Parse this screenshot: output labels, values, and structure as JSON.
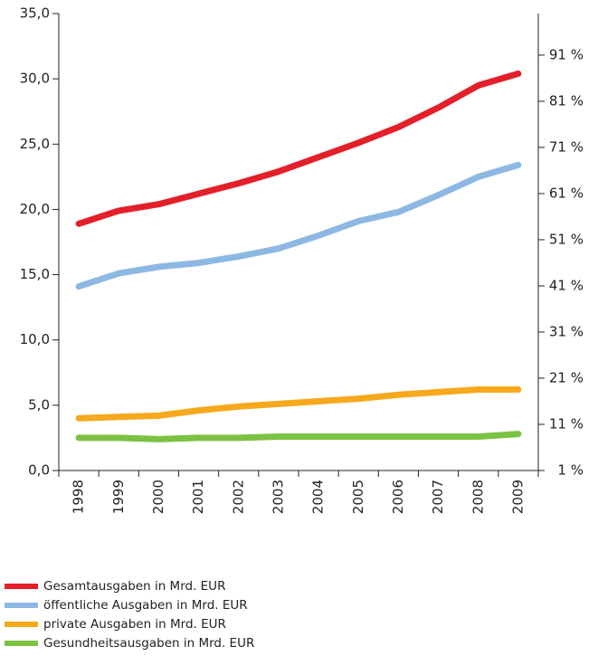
{
  "chart_data": {
    "type": "line",
    "categories": [
      "1998",
      "1999",
      "2000",
      "2001",
      "2002",
      "2003",
      "2004",
      "2005",
      "2006",
      "2007",
      "2008",
      "2009"
    ],
    "series": [
      {
        "name": "Gesamtausgaben in Mrd. EUR",
        "color": "#e3202a",
        "values": [
          18.9,
          19.9,
          20.4,
          21.2,
          22.0,
          22.9,
          24.0,
          25.1,
          26.3,
          27.8,
          29.5,
          30.4
        ]
      },
      {
        "name": "öffentliche Ausgaben in Mrd. EUR",
        "color": "#8db8e3",
        "values": [
          14.1,
          15.1,
          15.6,
          15.9,
          16.4,
          17.0,
          18.0,
          19.1,
          19.8,
          21.1,
          22.5,
          23.4
        ]
      },
      {
        "name": "private Ausgaben in Mrd. EUR",
        "color": "#f6a91c",
        "values": [
          4.0,
          4.1,
          4.2,
          4.6,
          4.9,
          5.1,
          5.3,
          5.5,
          5.8,
          6.0,
          6.2,
          6.2
        ]
      },
      {
        "name": "Gesundheitsausgaben in Mrd. EUR",
        "color": "#7cc242",
        "values": [
          2.5,
          2.5,
          2.4,
          2.5,
          2.5,
          2.6,
          2.6,
          2.6,
          2.6,
          2.6,
          2.6,
          2.8
        ]
      }
    ],
    "ylim": [
      0,
      35
    ],
    "yticks": [
      {
        "value": 0,
        "label": "0,0"
      },
      {
        "value": 5,
        "label": "5,0"
      },
      {
        "value": 10,
        "label": "10,0"
      },
      {
        "value": 15,
        "label": "15,0"
      },
      {
        "value": 20,
        "label": "20,0"
      },
      {
        "value": 25,
        "label": "25,0"
      },
      {
        "value": 30,
        "label": "30,0"
      },
      {
        "value": 35,
        "label": "35,0"
      }
    ],
    "y2lim": [
      1,
      100
    ],
    "y2ticks": [
      {
        "value": 1,
        "label": "1 %"
      },
      {
        "value": 11,
        "label": "11 %"
      },
      {
        "value": 21,
        "label": "21 %"
      },
      {
        "value": 31,
        "label": "31 %"
      },
      {
        "value": 41,
        "label": "41 %"
      },
      {
        "value": 51,
        "label": "51 %"
      },
      {
        "value": 61,
        "label": "61 %"
      },
      {
        "value": 71,
        "label": "71 %"
      },
      {
        "value": 81,
        "label": "81 %"
      },
      {
        "value": 91,
        "label": "91 %"
      }
    ],
    "legend": "bottom-left"
  }
}
